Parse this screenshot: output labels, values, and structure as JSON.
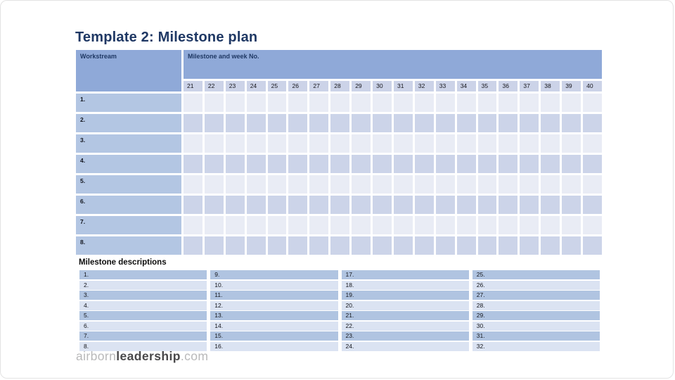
{
  "slide": {
    "title": "Template 2: Milestone plan"
  },
  "table": {
    "workstream_header": "Workstream",
    "milestone_header": "Milestone and week No.",
    "weeks": [
      "21",
      "22",
      "23",
      "24",
      "25",
      "26",
      "27",
      "28",
      "29",
      "30",
      "31",
      "32",
      "33",
      "34",
      "35",
      "36",
      "37",
      "38",
      "39",
      "40"
    ],
    "rows": [
      {
        "label": "1."
      },
      {
        "label": "2."
      },
      {
        "label": "3."
      },
      {
        "label": "4."
      },
      {
        "label": "5."
      },
      {
        "label": "6."
      },
      {
        "label": "7."
      },
      {
        "label": "8."
      }
    ]
  },
  "descriptions": {
    "heading": "Milestone descriptions",
    "columns": [
      [
        "1.",
        "2.",
        "3.",
        "4.",
        "5.",
        "6.",
        "7.",
        "8."
      ],
      [
        "9.",
        "10.",
        "11.",
        "12.",
        "13.",
        "14.",
        "15.",
        "16."
      ],
      [
        "17.",
        "18.",
        "19.",
        "20.",
        "21.",
        "22.",
        "23.",
        "24."
      ],
      [
        "25.",
        "26.",
        "27.",
        "28.",
        "29.",
        "30.",
        "31.",
        "32."
      ]
    ]
  },
  "footer": {
    "logo_airborn": "airborn",
    "logo_leadership": "leadership",
    "logo_com": ".com"
  },
  "colors": {
    "title_navy": "#1f3864",
    "header_blue": "#8fa9d8",
    "row_label_blue": "#b3c6e3",
    "band_light": "#e9ecf5",
    "band_dark": "#ccd4e9",
    "desc_odd": "#b0c4e1",
    "desc_even": "#dbe3f2"
  }
}
